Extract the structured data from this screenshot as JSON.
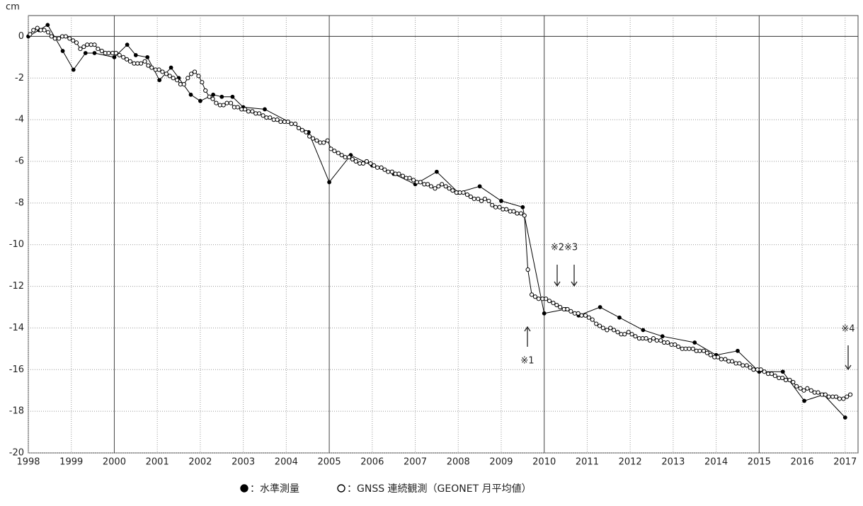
{
  "chart_data": {
    "type": "line",
    "y_label": "cm",
    "xlim": [
      1998,
      2017.3
    ],
    "xticks": [
      1998,
      1999,
      2000,
      2001,
      2002,
      2003,
      2004,
      2005,
      2006,
      2007,
      2008,
      2009,
      2010,
      2011,
      2012,
      2013,
      2014,
      2015,
      2016,
      2017
    ],
    "ylim": [
      -20,
      1
    ],
    "yticks": [
      0,
      -2,
      -4,
      -6,
      -8,
      -10,
      -12,
      -14,
      -16,
      -18,
      -20
    ],
    "grid": true,
    "annotations": [
      "※1",
      "※2※3",
      "※4"
    ],
    "series": [
      {
        "name": "：水準測量",
        "color": "#000000",
        "marker": "filled",
        "x": [
          1998.0,
          1998.25,
          1998.45,
          1998.8,
          1999.05,
          1999.33,
          1999.54,
          2000.0,
          2000.3,
          2000.5,
          2000.77,
          2001.05,
          2001.32,
          2001.5,
          2001.78,
          2002.0,
          2002.3,
          2002.5,
          2002.75,
          2003.0,
          2003.5,
          2004.52,
          2005.0,
          2005.5,
          2006.0,
          2006.5,
          2007.0,
          2007.5,
          2008.0,
          2008.5,
          2009.0,
          2009.5,
          2010.0,
          2010.5,
          2010.8,
          2011.3,
          2011.75,
          2012.3,
          2012.75,
          2013.5,
          2014.0,
          2014.5,
          2015.0,
          2015.55,
          2016.05,
          2016.5,
          2017.0
        ],
        "values": [
          0,
          0.3,
          0.55,
          -0.7,
          -1.6,
          -0.8,
          -0.8,
          -1.0,
          -0.4,
          -0.9,
          -1.0,
          -2.1,
          -1.5,
          -2.0,
          -2.8,
          -3.1,
          -2.8,
          -2.9,
          -2.9,
          -3.4,
          -3.5,
          -4.6,
          -7.0,
          -5.7,
          -6.2,
          -6.6,
          -7.1,
          -6.5,
          -7.5,
          -7.2,
          -7.9,
          -8.2,
          -13.3,
          -13.1,
          -13.4,
          -13.0,
          -13.5,
          -14.1,
          -14.4,
          -14.7,
          -15.3,
          -15.1,
          -16.1,
          -16.1,
          -17.5,
          -17.2,
          -18.3
        ]
      },
      {
        "name": "：GNSS 連続観測（GEONET 月平均値）",
        "color": "#000000",
        "marker": "open",
        "x": [
          1998.04,
          1998.12,
          1998.21,
          1998.29,
          1998.37,
          1998.46,
          1998.54,
          1998.62,
          1998.71,
          1998.79,
          1998.87,
          1998.96,
          1999.04,
          1999.12,
          1999.21,
          1999.29,
          1999.37,
          1999.46,
          1999.54,
          1999.62,
          1999.71,
          1999.79,
          1999.87,
          1999.96,
          2000.04,
          2000.12,
          2000.21,
          2000.29,
          2000.37,
          2000.46,
          2000.54,
          2000.62,
          2000.71,
          2000.79,
          2000.87,
          2000.96,
          2001.04,
          2001.12,
          2001.21,
          2001.29,
          2001.37,
          2001.46,
          2001.54,
          2001.62,
          2001.71,
          2001.79,
          2001.87,
          2001.96,
          2002.04,
          2002.12,
          2002.21,
          2002.29,
          2002.37,
          2002.46,
          2002.54,
          2002.62,
          2002.71,
          2002.79,
          2002.87,
          2002.96,
          2003.04,
          2003.12,
          2003.21,
          2003.29,
          2003.37,
          2003.46,
          2003.54,
          2003.62,
          2003.71,
          2003.79,
          2003.87,
          2003.96,
          2004.04,
          2004.12,
          2004.21,
          2004.29,
          2004.37,
          2004.46,
          2004.54,
          2004.62,
          2004.71,
          2004.79,
          2004.87,
          2004.96,
          2005.04,
          2005.12,
          2005.21,
          2005.29,
          2005.37,
          2005.46,
          2005.54,
          2005.62,
          2005.71,
          2005.79,
          2005.87,
          2005.96,
          2006.04,
          2006.12,
          2006.21,
          2006.29,
          2006.37,
          2006.46,
          2006.54,
          2006.62,
          2006.71,
          2006.79,
          2006.87,
          2006.96,
          2007.04,
          2007.12,
          2007.21,
          2007.29,
          2007.37,
          2007.46,
          2007.54,
          2007.62,
          2007.71,
          2007.79,
          2007.87,
          2007.96,
          2008.04,
          2008.12,
          2008.21,
          2008.29,
          2008.37,
          2008.46,
          2008.54,
          2008.62,
          2008.71,
          2008.79,
          2008.87,
          2008.96,
          2009.04,
          2009.12,
          2009.21,
          2009.29,
          2009.37,
          2009.46,
          2009.54,
          2009.62,
          2009.71,
          2009.79,
          2009.87,
          2009.96,
          2010.04,
          2010.12,
          2010.21,
          2010.29,
          2010.37,
          2010.46,
          2010.54,
          2010.62,
          2010.71,
          2010.79,
          2010.87,
          2010.96,
          2011.04,
          2011.12,
          2011.21,
          2011.29,
          2011.37,
          2011.46,
          2011.54,
          2011.62,
          2011.71,
          2011.79,
          2011.87,
          2011.96,
          2012.04,
          2012.12,
          2012.21,
          2012.29,
          2012.37,
          2012.46,
          2012.54,
          2012.62,
          2012.71,
          2012.79,
          2012.87,
          2012.96,
          2013.04,
          2013.12,
          2013.21,
          2013.29,
          2013.37,
          2013.46,
          2013.54,
          2013.62,
          2013.71,
          2013.79,
          2013.87,
          2013.96,
          2014.04,
          2014.12,
          2014.21,
          2014.29,
          2014.37,
          2014.46,
          2014.54,
          2014.62,
          2014.71,
          2014.79,
          2014.87,
          2014.96,
          2015.04,
          2015.12,
          2015.21,
          2015.29,
          2015.37,
          2015.46,
          2015.54,
          2015.62,
          2015.71,
          2015.79,
          2015.87,
          2015.96,
          2016.04,
          2016.12,
          2016.21,
          2016.29,
          2016.37,
          2016.46,
          2016.54,
          2016.62,
          2016.71,
          2016.79,
          2016.87,
          2016.96,
          2017.04,
          2017.12
        ],
        "values": [
          0.1,
          0.3,
          0.4,
          0.3,
          0.3,
          0.2,
          0.0,
          -0.1,
          -0.1,
          0.0,
          0.0,
          -0.1,
          -0.2,
          -0.3,
          -0.6,
          -0.5,
          -0.4,
          -0.4,
          -0.4,
          -0.6,
          -0.7,
          -0.8,
          -0.8,
          -0.8,
          -0.8,
          -0.9,
          -1.0,
          -1.1,
          -1.2,
          -1.3,
          -1.3,
          -1.3,
          -1.2,
          -1.4,
          -1.5,
          -1.6,
          -1.6,
          -1.7,
          -1.8,
          -1.9,
          -2.0,
          -2.1,
          -2.3,
          -2.3,
          -2.0,
          -1.8,
          -1.7,
          -1.9,
          -2.2,
          -2.6,
          -2.9,
          -3.0,
          -3.2,
          -3.3,
          -3.3,
          -3.2,
          -3.2,
          -3.4,
          -3.4,
          -3.5,
          -3.5,
          -3.6,
          -3.6,
          -3.7,
          -3.7,
          -3.8,
          -3.9,
          -3.9,
          -4.0,
          -4.0,
          -4.1,
          -4.1,
          -4.1,
          -4.2,
          -4.2,
          -4.4,
          -4.5,
          -4.6,
          -4.8,
          -4.9,
          -5.0,
          -5.1,
          -5.1,
          -5.0,
          -5.4,
          -5.5,
          -5.6,
          -5.7,
          -5.8,
          -5.8,
          -5.9,
          -6.0,
          -6.1,
          -6.1,
          -6.0,
          -6.1,
          -6.2,
          -6.3,
          -6.3,
          -6.4,
          -6.5,
          -6.5,
          -6.6,
          -6.6,
          -6.7,
          -6.8,
          -6.8,
          -6.9,
          -7.0,
          -7.0,
          -7.1,
          -7.1,
          -7.2,
          -7.3,
          -7.2,
          -7.1,
          -7.2,
          -7.3,
          -7.4,
          -7.5,
          -7.5,
          -7.5,
          -7.6,
          -7.7,
          -7.8,
          -7.8,
          -7.9,
          -7.8,
          -7.9,
          -8.1,
          -8.2,
          -8.2,
          -8.3,
          -8.3,
          -8.4,
          -8.4,
          -8.5,
          -8.5,
          -8.6,
          -11.2,
          -12.4,
          -12.5,
          -12.6,
          -12.6,
          -12.6,
          -12.7,
          -12.8,
          -12.9,
          -13.0,
          -13.1,
          -13.1,
          -13.2,
          -13.3,
          -13.3,
          -13.4,
          -13.4,
          -13.5,
          -13.6,
          -13.8,
          -13.9,
          -14.0,
          -14.1,
          -14.0,
          -14.1,
          -14.2,
          -14.3,
          -14.3,
          -14.2,
          -14.3,
          -14.4,
          -14.5,
          -14.5,
          -14.5,
          -14.6,
          -14.5,
          -14.6,
          -14.6,
          -14.7,
          -14.7,
          -14.8,
          -14.8,
          -14.9,
          -15.0,
          -15.0,
          -15.0,
          -15.0,
          -15.1,
          -15.1,
          -15.1,
          -15.2,
          -15.3,
          -15.4,
          -15.4,
          -15.5,
          -15.5,
          -15.6,
          -15.6,
          -15.7,
          -15.7,
          -15.8,
          -15.8,
          -15.9,
          -16.0,
          -16.0,
          -16.0,
          -16.1,
          -16.2,
          -16.2,
          -16.3,
          -16.4,
          -16.4,
          -16.5,
          -16.5,
          -16.6,
          -16.8,
          -16.9,
          -17.0,
          -16.9,
          -17.0,
          -17.1,
          -17.1,
          -17.2,
          -17.2,
          -17.3,
          -17.3,
          -17.3,
          -17.4,
          -17.4,
          -17.3,
          -17.2
        ]
      }
    ]
  }
}
